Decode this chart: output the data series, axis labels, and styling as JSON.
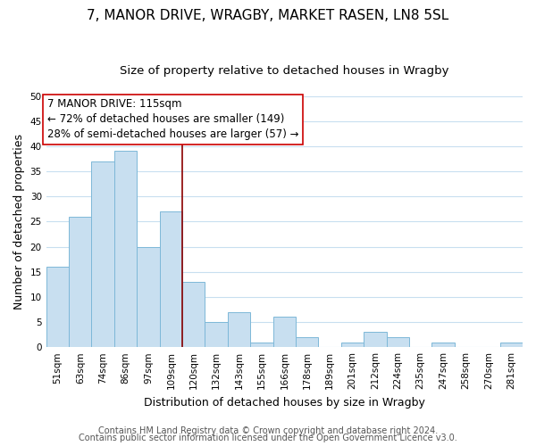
{
  "title": "7, MANOR DRIVE, WRAGBY, MARKET RASEN, LN8 5SL",
  "subtitle": "Size of property relative to detached houses in Wragby",
  "xlabel": "Distribution of detached houses by size in Wragby",
  "ylabel": "Number of detached properties",
  "bar_labels": [
    "51sqm",
    "63sqm",
    "74sqm",
    "86sqm",
    "97sqm",
    "109sqm",
    "120sqm",
    "132sqm",
    "143sqm",
    "155sqm",
    "166sqm",
    "178sqm",
    "189sqm",
    "201sqm",
    "212sqm",
    "224sqm",
    "235sqm",
    "247sqm",
    "258sqm",
    "270sqm",
    "281sqm"
  ],
  "bar_values": [
    16,
    26,
    37,
    39,
    20,
    27,
    13,
    5,
    7,
    1,
    6,
    2,
    0,
    1,
    3,
    2,
    0,
    1,
    0,
    0,
    1
  ],
  "bar_color": "#c8dff0",
  "bar_edge_color": "#7db8d8",
  "annotation_box_text": "7 MANOR DRIVE: 115sqm\n← 72% of detached houses are smaller (149)\n28% of semi-detached houses are larger (57) →",
  "vline_color": "#8b0000",
  "vline_x": 5.5,
  "ylim": [
    0,
    50
  ],
  "yticks": [
    0,
    5,
    10,
    15,
    20,
    25,
    30,
    35,
    40,
    45,
    50
  ],
  "footer1": "Contains HM Land Registry data © Crown copyright and database right 2024.",
  "footer2": "Contains public sector information licensed under the Open Government Licence v3.0.",
  "bg_color": "#ffffff",
  "grid_color": "#c8dff0",
  "title_fontsize": 11,
  "subtitle_fontsize": 9.5,
  "axis_label_fontsize": 9,
  "tick_fontsize": 7.5,
  "annotation_fontsize": 8.5,
  "footer_fontsize": 7
}
